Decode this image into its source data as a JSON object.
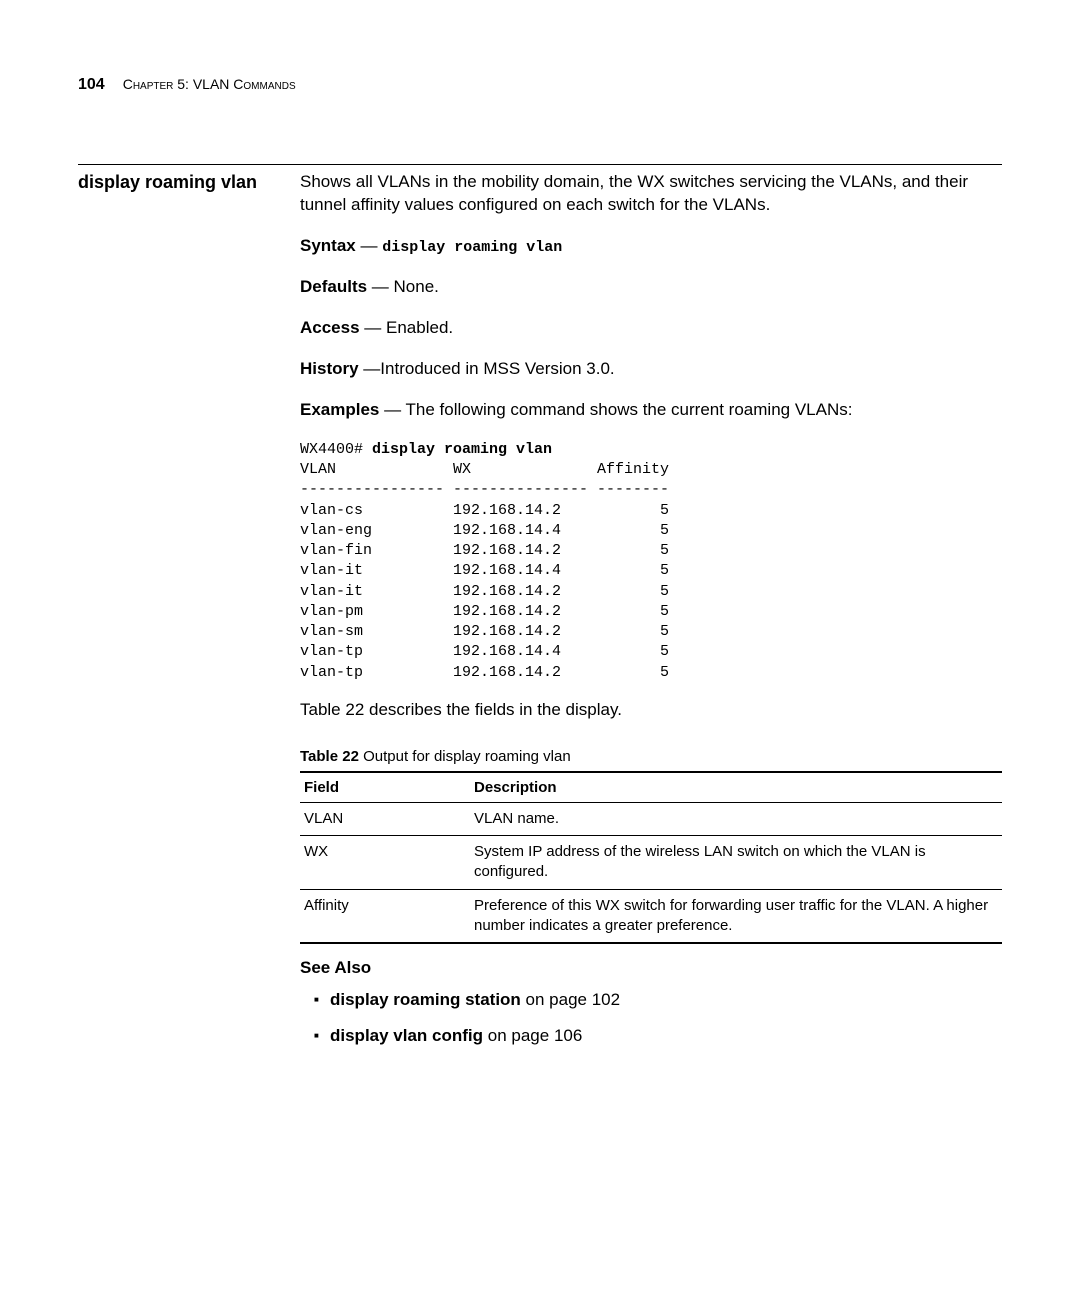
{
  "header": {
    "page_number": "104",
    "chapter": "Chapter 5: VLAN Commands"
  },
  "command": {
    "name": "display roaming vlan",
    "description": "Shows all VLANs in the mobility domain, the WX switches servicing the VLANs, and their tunnel affinity values configured on each switch for the VLANs.",
    "syntax_label": "Syntax",
    "syntax_value": "display roaming vlan",
    "defaults_label": "Defaults",
    "defaults_value": " — None.",
    "access_label": "Access",
    "access_value": " — Enabled.",
    "history_label": "History",
    "history_value": " —Introduced in MSS Version 3.0.",
    "examples_label": "Examples",
    "examples_intro": " — The following command shows the current roaming VLANs:",
    "example_prompt": "WX4400# ",
    "example_cmd": "display roaming vlan",
    "example_columns": [
      "VLAN",
      "WX",
      "Affinity"
    ],
    "example_separators": [
      "----------------",
      "---------------",
      "--------"
    ],
    "example_rows": [
      [
        "vlan-cs",
        "192.168.14.2",
        "5"
      ],
      [
        "vlan-eng",
        "192.168.14.4",
        "5"
      ],
      [
        "vlan-fin",
        "192.168.14.2",
        "5"
      ],
      [
        "vlan-it",
        "192.168.14.4",
        "5"
      ],
      [
        "vlan-it",
        "192.168.14.2",
        "5"
      ],
      [
        "vlan-pm",
        "192.168.14.2",
        "5"
      ],
      [
        "vlan-sm",
        "192.168.14.2",
        "5"
      ],
      [
        "vlan-tp",
        "192.168.14.4",
        "5"
      ],
      [
        "vlan-tp",
        "192.168.14.2",
        "5"
      ]
    ],
    "table_intro": "Table 22 describes the fields in the display.",
    "table_caption_label": "Table 22",
    "table_caption_text": "   Output for display roaming vlan",
    "table_headers": [
      "Field",
      "Description"
    ],
    "table_rows": [
      {
        "field": "VLAN",
        "desc": "VLAN name."
      },
      {
        "field": "WX",
        "desc": "System IP address of the wireless LAN switch on which the VLAN is configured."
      },
      {
        "field": "Affinity",
        "desc": "Preference of this WX switch for forwarding user traffic for the VLAN. A higher number indicates a greater preference."
      }
    ],
    "see_also_label": "See Also",
    "see_also_links": [
      {
        "text": "display roaming station",
        "suffix": " on page 102"
      },
      {
        "text": "display vlan config",
        "suffix": " on page 106"
      }
    ]
  }
}
